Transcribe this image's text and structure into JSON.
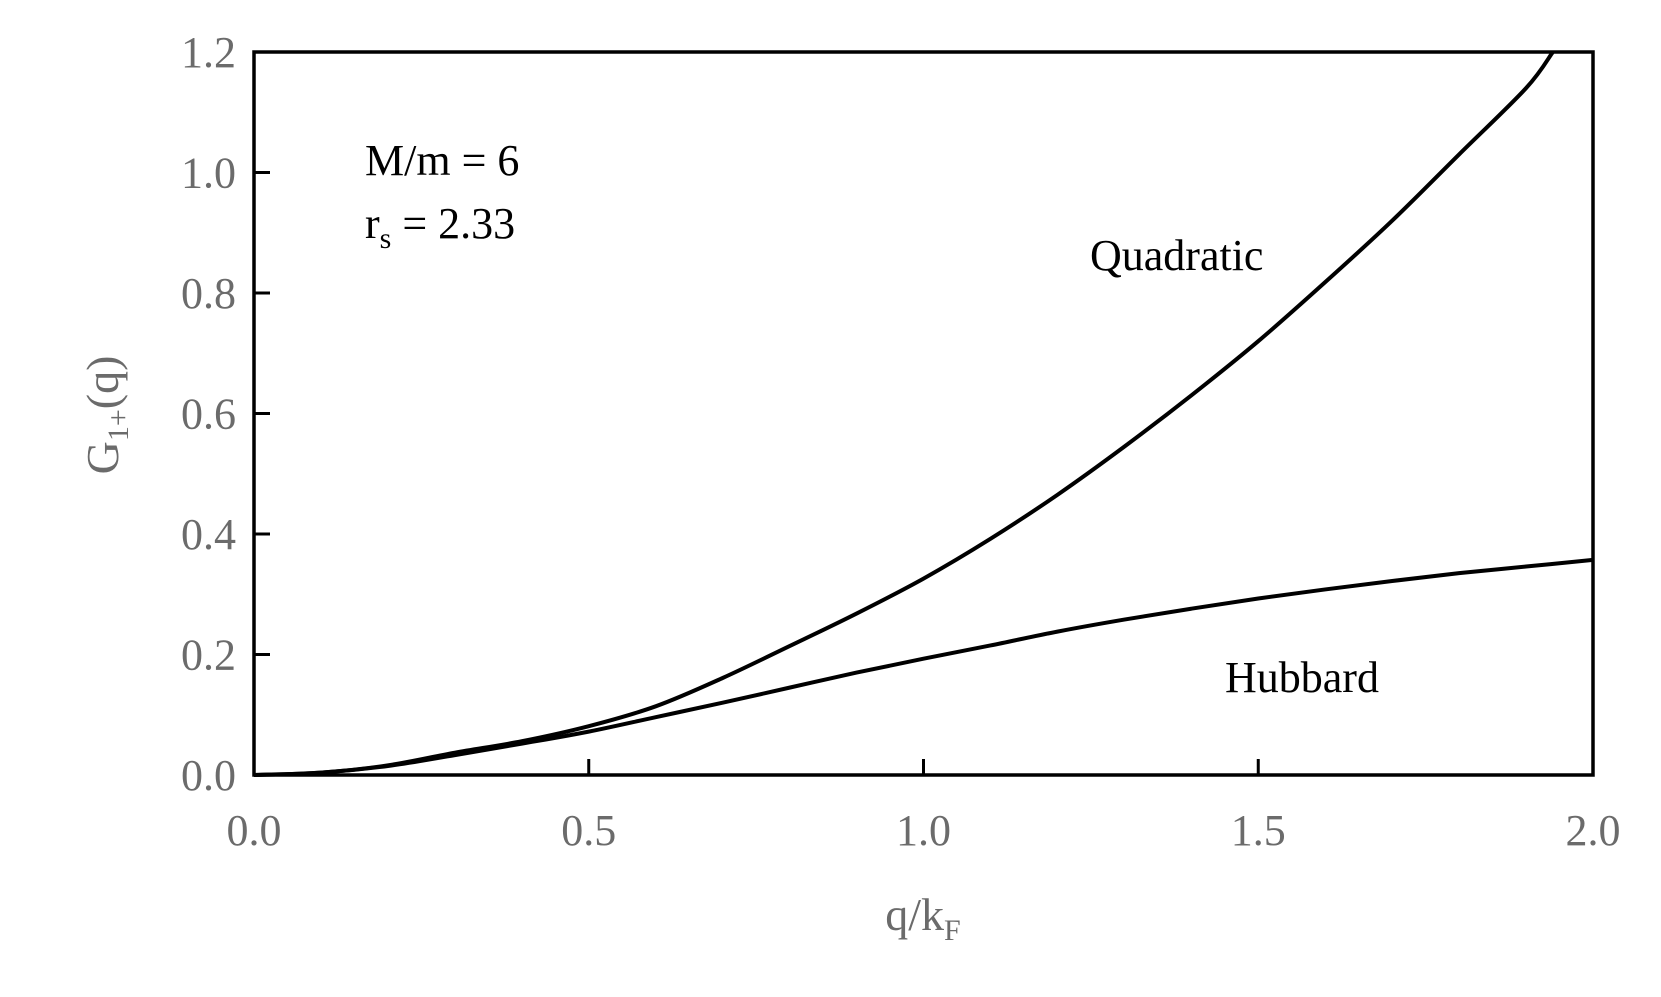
{
  "chart_data": {
    "type": "line",
    "title": "",
    "xlabel": {
      "base": "q/k",
      "sub": "F"
    },
    "ylabel": {
      "base": "G",
      "sub": "1+",
      "tail": "(q)"
    },
    "xlim": [
      0.0,
      2.0
    ],
    "ylim": [
      0.0,
      1.2
    ],
    "x_ticks": [
      "0.0",
      "0.5",
      "1.0",
      "1.5",
      "2.0"
    ],
    "y_ticks": [
      "0.0",
      "0.2",
      "0.4",
      "0.6",
      "0.8",
      "1.0",
      "1.2"
    ],
    "grid": false,
    "annotation": {
      "line1": "M/m = 6",
      "line2_base": "r",
      "line2_sub": "s",
      "line2_tail": " = 2.33"
    },
    "series": [
      {
        "name": "Quadratic",
        "x": [
          0.0,
          0.1,
          0.2,
          0.3,
          0.4,
          0.5,
          0.6,
          0.7,
          0.8,
          0.9,
          1.0,
          1.1,
          1.2,
          1.3,
          1.4,
          1.5,
          1.6,
          1.7,
          1.8,
          1.9,
          1.94
        ],
        "y": [
          0.0,
          0.004,
          0.016,
          0.037,
          0.056,
          0.081,
          0.114,
          0.161,
          0.214,
          0.268,
          0.326,
          0.392,
          0.465,
          0.545,
          0.63,
          0.72,
          0.818,
          0.92,
          1.03,
          1.14,
          1.2
        ]
      },
      {
        "name": "Hubbard",
        "x": [
          0.0,
          0.1,
          0.2,
          0.3,
          0.4,
          0.5,
          0.6,
          0.7,
          0.8,
          0.9,
          1.0,
          1.1,
          1.2,
          1.3,
          1.4,
          1.5,
          1.6,
          1.7,
          1.8,
          1.9,
          2.0
        ],
        "y": [
          0.0,
          0.004,
          0.015,
          0.033,
          0.052,
          0.072,
          0.096,
          0.12,
          0.145,
          0.17,
          0.193,
          0.215,
          0.238,
          0.258,
          0.276,
          0.293,
          0.308,
          0.322,
          0.335,
          0.346,
          0.357
        ]
      }
    ]
  }
}
